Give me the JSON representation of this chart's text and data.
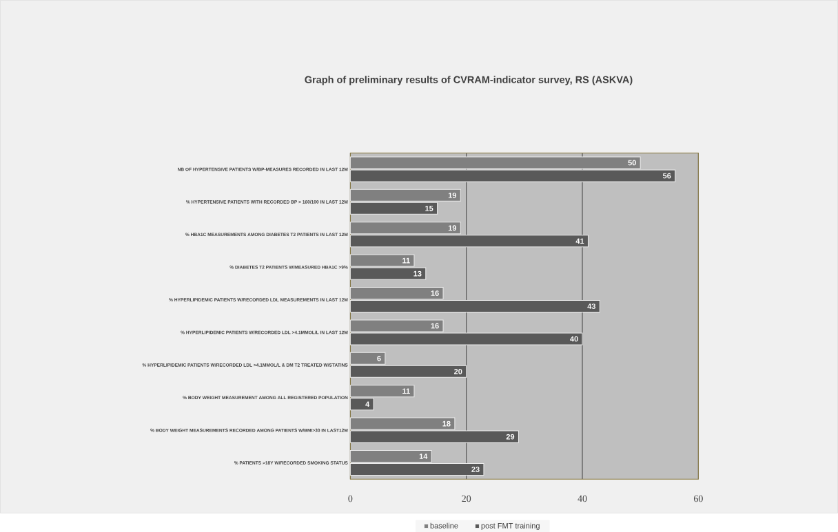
{
  "chart_data": {
    "type": "bar",
    "orientation": "horizontal",
    "title": "Graph of preliminary results of CVRAM-indicator survey, RS (ASKVA)",
    "categories": [
      "NB OF HYPERTENSIVE PATIENTS W/BP-MEASURES RECORDED IN LAST 12M",
      "% HYPERTENSIVE PATIENTS WITH RECORDED BP > 160/100 IN LAST 12M",
      "% HBA1C MEASUREMENTS AMONG DIABETES T2 PATIENTS IN LAST 12M",
      "% DIABETES T2 PATIENTS W/MEASURED HBA1C >9%",
      "% HYPERLIPIDEMIC PATIENTS W/RECORDED LDL MEASUREMENTS IN LAST 12M",
      "% HYPERLIPIDEMIC PATIENTS W/RECORDED LDL >4.1MMOL/L IN LAST 12M",
      "% HYPERLIPIDEMIC PATIENTS W/RECORDED LDL >4.1MMOL/L & DM T2 TREATED W/STATINS",
      "% BODY WEIGHT MEASUREMENT AMONG ALL REGISTERED POPULATION",
      "% BODY WEIGHT MEASUREMENTS RECORDED AMONG PATIENTS W/BMI>30 IN LAST12M",
      "% PATIENTS >18Y W/RECORDED SMOKING STATUS"
    ],
    "series": [
      {
        "name": "baseline",
        "color": "#808080",
        "values": [
          50,
          19,
          19,
          11,
          16,
          16,
          6,
          11,
          18,
          14
        ]
      },
      {
        "name": "post FMT training",
        "color": "#595959",
        "values": [
          56,
          15,
          41,
          13,
          43,
          40,
          20,
          4,
          29,
          23
        ]
      }
    ],
    "xlim": [
      0,
      60
    ],
    "xticks": [
      0,
      20,
      40,
      60
    ],
    "grid": "x",
    "legend": "bottom",
    "data_labels": true
  }
}
